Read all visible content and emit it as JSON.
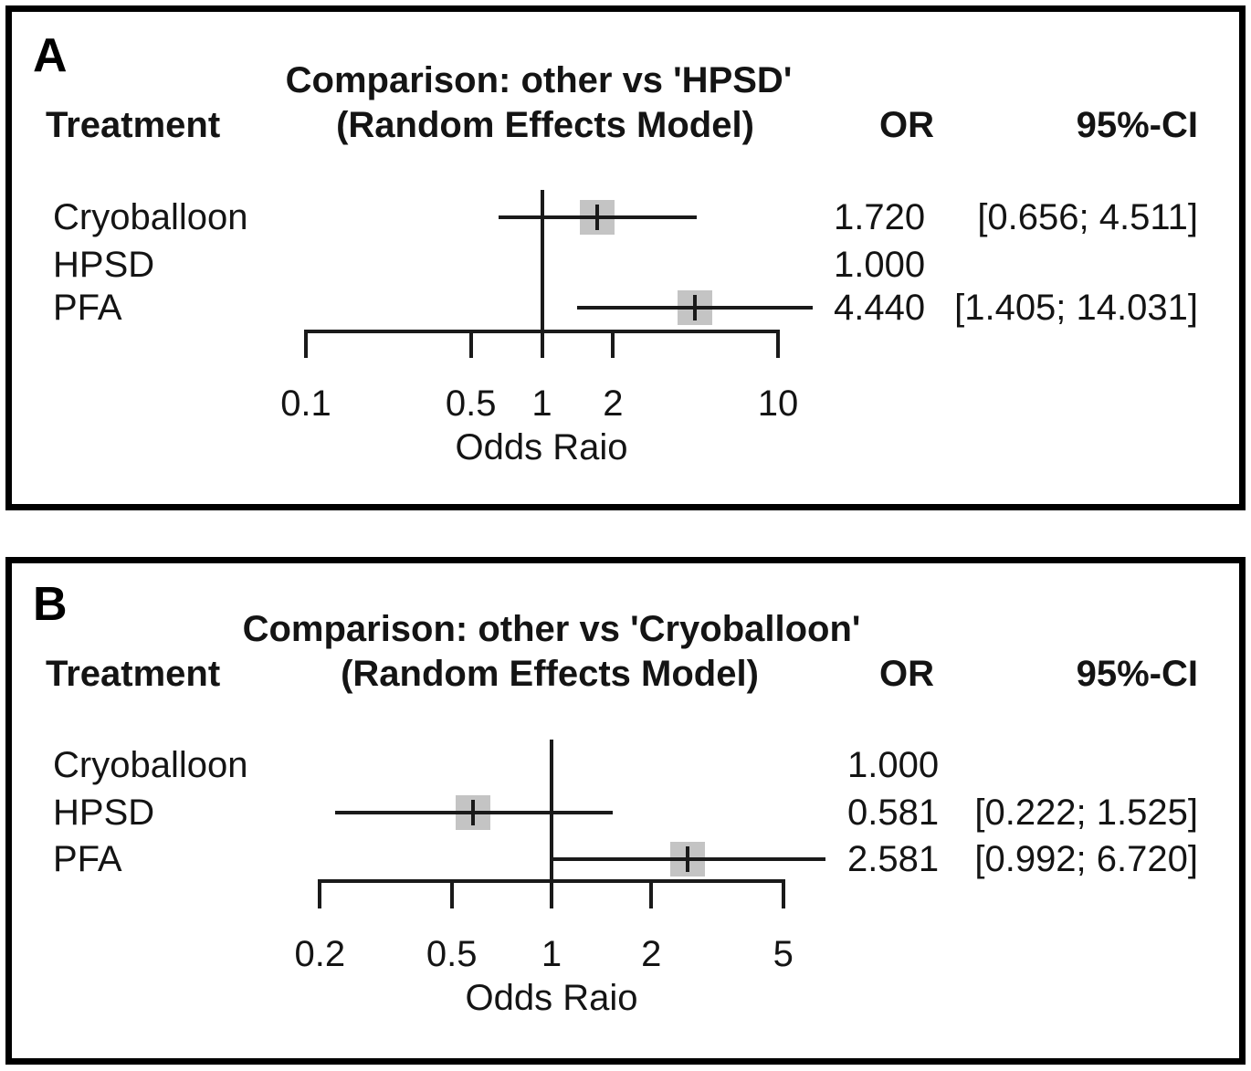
{
  "figure": {
    "panels": [
      {
        "label": "A",
        "title_line1": "Comparison: other vs 'HPSD'",
        "title_line2": "(Random Effects Model)",
        "col_treatment": "Treatment",
        "col_or": "OR",
        "col_ci": "95%-CI",
        "xlabel": "Odds Raio",
        "rows": [
          {
            "label": "Cryoballoon",
            "or_text": "1.720",
            "ci_text": "[0.656; 4.511]"
          },
          {
            "label": "HPSD",
            "or_text": "1.000",
            "ci_text": ""
          },
          {
            "label": "PFA",
            "or_text": "4.440",
            "ci_text": "[1.405; 14.031]"
          }
        ]
      },
      {
        "label": "B",
        "title_line1": "Comparison: other vs 'Cryoballoon'",
        "title_line2": "(Random Effects Model)",
        "col_treatment": "Treatment",
        "col_or": "OR",
        "col_ci": "95%-CI",
        "xlabel": "Odds Raio",
        "rows": [
          {
            "label": "Cryoballoon",
            "or_text": "1.000",
            "ci_text": ""
          },
          {
            "label": "HPSD",
            "or_text": "0.581",
            "ci_text": "[0.222; 1.525]"
          },
          {
            "label": "PFA",
            "or_text": "2.581",
            "ci_text": "[0.992; 6.720]"
          }
        ]
      }
    ],
    "colors": {
      "marker_fill": "#c4c4c4",
      "line_color": "#1a1a1a",
      "text_color": "#141414",
      "frame_color": "#000000"
    }
  },
  "chart_data": [
    {
      "type": "scatter",
      "variant": "forest-plot",
      "panel": "a",
      "title": "Comparison: other vs 'HPSD' (Random Effects Model)",
      "xlabel": "Odds Raio",
      "xscale": "log",
      "xlim": [
        0.1,
        10
      ],
      "xticks": [
        0.1,
        0.5,
        1,
        2,
        10
      ],
      "xtick_labels": [
        "0.1",
        "0.5",
        "1",
        "2",
        "10"
      ],
      "reference_line": 1,
      "series": [
        {
          "treatment": "Cryoballoon",
          "or": 1.72,
          "ci95": [
            0.656,
            4.511
          ]
        },
        {
          "treatment": "HPSD",
          "or": 1.0,
          "ci95": null
        },
        {
          "treatment": "PFA",
          "or": 4.44,
          "ci95": [
            1.405,
            14.031
          ]
        }
      ]
    },
    {
      "type": "scatter",
      "variant": "forest-plot",
      "panel": "b",
      "title": "Comparison: other vs 'Cryoballoon' (Random Effects Model)",
      "xlabel": "Odds Raio",
      "xscale": "log",
      "xlim": [
        0.2,
        5
      ],
      "xticks": [
        0.2,
        0.5,
        1,
        2,
        5
      ],
      "xtick_labels": [
        "0.2",
        "0.5",
        "1",
        "2",
        "5"
      ],
      "reference_line": 1,
      "series": [
        {
          "treatment": "Cryoballoon",
          "or": 1.0,
          "ci95": null
        },
        {
          "treatment": "HPSD",
          "or": 0.581,
          "ci95": [
            0.222,
            1.525
          ]
        },
        {
          "treatment": "PFA",
          "or": 2.581,
          "ci95": [
            0.992,
            6.72
          ]
        }
      ]
    }
  ]
}
